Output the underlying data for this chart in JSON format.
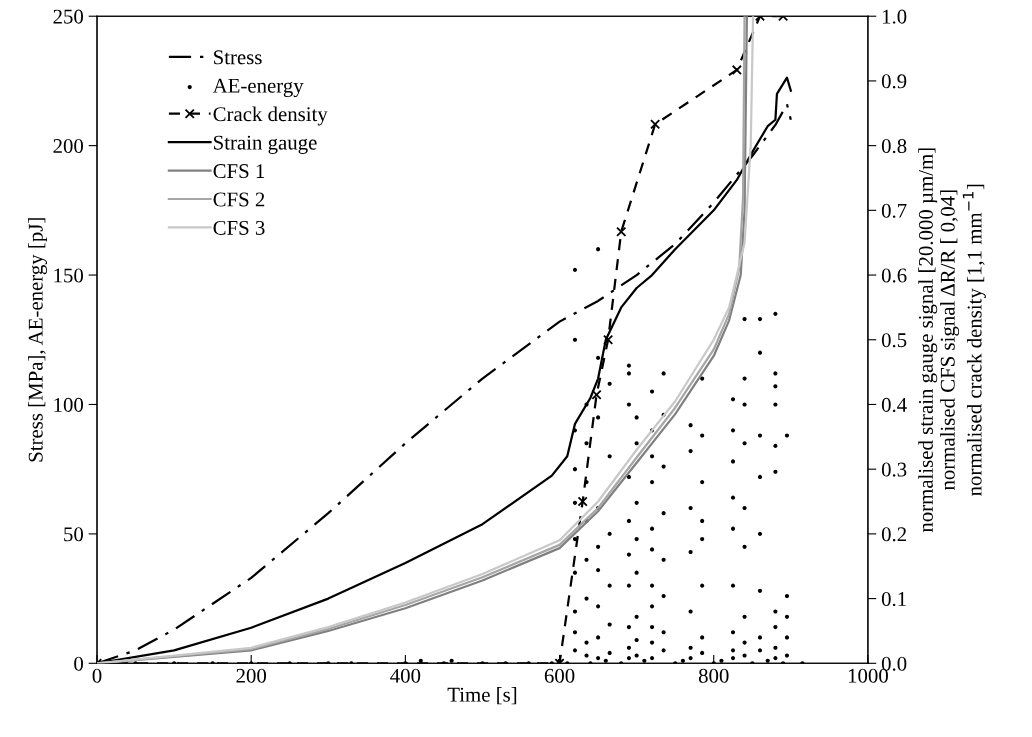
{
  "chart_data": {
    "type": "line",
    "xlabel": "Time [s]",
    "ylabel": "Stress [MPa], AE-energy [pJ]",
    "y2label": "normalised strain gauge signal [20.000 µm/m]\nnormalised CFS signal ΔR/R [ 0,04]\nnormalised crack density [1,1 mm$^{−1}$]",
    "xlim": [
      0,
      1000
    ],
    "xticks": [
      0,
      200,
      400,
      600,
      800,
      1000
    ],
    "ylim": [
      0,
      250
    ],
    "yticks": [
      0,
      50,
      100,
      150,
      200,
      250
    ],
    "y2lim": [
      0,
      1
    ],
    "y2ticks": [
      {
        "value": 0,
        "label": "0.0"
      },
      {
        "value": 0.1,
        "label": "0.1"
      },
      {
        "value": 0.2,
        "label": "0.2"
      },
      {
        "value": 0.3,
        "label": "0.3"
      },
      {
        "value": 0.4,
        "label": "0.4"
      },
      {
        "value": 0.5,
        "label": "0.5"
      },
      {
        "value": 0.6,
        "label": "0.6"
      },
      {
        "value": 0.7,
        "label": "0.7"
      },
      {
        "value": 0.8,
        "label": "0.8"
      },
      {
        "value": 0.9,
        "label": "0.9"
      },
      {
        "value": 1,
        "label": "1.0"
      }
    ],
    "grid": false,
    "legend": "top left",
    "series": [
      {
        "name": "Stress",
        "color": "#000000",
        "line_style": "dashdot",
        "marker": "none",
        "x": [
          0,
          50,
          100,
          200,
          300,
          400,
          500,
          600,
          650,
          700,
          750,
          800,
          850,
          880,
          895,
          900
        ],
        "values": [
          0,
          5,
          13,
          33,
          58,
          85,
          110,
          132,
          140,
          150,
          162,
          178,
          196,
          208,
          216,
          210
        ]
      },
      {
        "name": "AE-energy",
        "type": "scatter",
        "color": "#000000",
        "marker": "circle",
        "x": [
          50,
          100,
          150,
          200,
          250,
          300,
          330,
          400,
          420,
          450,
          460,
          500,
          530,
          560,
          590,
          600,
          610,
          640,
          660,
          680,
          710,
          750,
          760,
          800,
          810,
          850,
          870,
          890,
          915,
          620,
          620,
          620,
          620,
          620,
          620,
          620,
          620,
          620,
          620,
          635,
          635,
          635,
          635,
          635,
          635,
          635,
          635,
          650,
          650,
          650,
          650,
          650,
          650,
          650,
          650,
          650,
          665,
          665,
          665,
          665,
          665,
          665,
          690,
          690,
          690,
          690,
          690,
          690,
          690,
          690,
          690,
          690,
          700,
          700,
          700,
          700,
          700,
          700,
          700,
          700,
          720,
          720,
          720,
          720,
          720,
          720,
          720,
          720,
          720,
          720,
          720,
          735,
          735,
          735,
          735,
          735,
          735,
          735,
          735,
          770,
          770,
          770,
          770,
          770,
          770,
          770,
          785,
          785,
          785,
          785,
          785,
          785,
          785,
          785,
          825,
          825,
          825,
          825,
          825,
          825,
          825,
          825,
          825,
          840,
          840,
          840,
          840,
          840,
          840,
          840,
          840,
          840,
          860,
          860,
          860,
          860,
          860,
          860,
          860,
          860,
          880,
          880,
          880,
          880,
          880,
          880,
          880,
          880,
          880,
          880,
          895,
          895,
          895,
          895,
          895
        ],
        "values": [
          0,
          0,
          0,
          0,
          0,
          0,
          0,
          0,
          1,
          0,
          1,
          0,
          0,
          0,
          0,
          1,
          0,
          0,
          1,
          0,
          1,
          0,
          1,
          0,
          1,
          0,
          1,
          0,
          0,
          5,
          12,
          20,
          35,
          48,
          62,
          75,
          90,
          125,
          152,
          3,
          8,
          25,
          40,
          55,
          70,
          85,
          100,
          2,
          10,
          22,
          36,
          45,
          60,
          95,
          118,
          160,
          4,
          15,
          30,
          50,
          80,
          108,
          2,
          6,
          14,
          30,
          42,
          55,
          72,
          100,
          112,
          115,
          3,
          9,
          18,
          35,
          48,
          62,
          85,
          95,
          2,
          8,
          14,
          22,
          30,
          44,
          52,
          70,
          80,
          90,
          105,
          5,
          12,
          26,
          40,
          58,
          76,
          96,
          112,
          2,
          6,
          20,
          43,
          60,
          82,
          92,
          4,
          10,
          30,
          48,
          55,
          70,
          88,
          110,
          2,
          5,
          12,
          30,
          52,
          64,
          78,
          90,
          102,
          3,
          8,
          18,
          45,
          60,
          85,
          100,
          110,
          133,
          5,
          10,
          28,
          50,
          72,
          88,
          120,
          133,
          2,
          6,
          14,
          20,
          74,
          84,
          100,
          107,
          112,
          135,
          3,
          10,
          18,
          26,
          88
        ]
      },
      {
        "name": "Crack density",
        "axis": "y2",
        "color": "#000000",
        "line_style": "dashed",
        "marker": "cross",
        "x": [
          0,
          600,
          630,
          648,
          663,
          680,
          724,
          830,
          860,
          890
        ],
        "values": [
          0,
          0,
          0.25,
          0.415,
          0.5,
          0.667,
          0.833,
          0.917,
          1.0,
          1.0
        ]
      },
      {
        "name": "Strain gauge",
        "axis": "y2",
        "color": "#000000",
        "line_style": "solid",
        "marker": "none",
        "x": [
          0,
          100,
          200,
          300,
          400,
          500,
          590,
          610,
          620,
          640,
          650,
          660,
          680,
          700,
          720,
          750,
          800,
          830,
          850,
          870,
          880,
          882,
          895,
          900
        ],
        "values": [
          0,
          0.02,
          0.055,
          0.1,
          0.155,
          0.215,
          0.29,
          0.32,
          0.37,
          0.41,
          0.44,
          0.5,
          0.55,
          0.58,
          0.6,
          0.64,
          0.7,
          0.747,
          0.79,
          0.83,
          0.84,
          0.88,
          0.905,
          0.885
        ]
      },
      {
        "name": "CFS 1",
        "axis": "y2",
        "color": "#808080",
        "line_style": "solid",
        "marker": "none",
        "x": [
          0,
          200,
          300,
          400,
          500,
          600,
          650,
          700,
          750,
          800,
          820,
          835,
          840,
          843
        ],
        "values": [
          0,
          0.02,
          0.05,
          0.085,
          0.128,
          0.178,
          0.235,
          0.31,
          0.385,
          0.475,
          0.53,
          0.6,
          0.7,
          1.0
        ]
      },
      {
        "name": "CFS 2",
        "axis": "y2",
        "color": "#a6a6a6",
        "line_style": "solid",
        "marker": "none",
        "x": [
          0,
          200,
          300,
          400,
          500,
          600,
          650,
          700,
          750,
          800,
          820,
          833,
          838,
          840
        ],
        "values": [
          0,
          0.022,
          0.053,
          0.09,
          0.133,
          0.183,
          0.24,
          0.318,
          0.395,
          0.485,
          0.54,
          0.61,
          0.72,
          1.0
        ]
      },
      {
        "name": "CFS 3",
        "axis": "y2",
        "color": "#c8c8c8",
        "line_style": "solid",
        "marker": "none",
        "x": [
          0,
          200,
          300,
          400,
          500,
          600,
          650,
          700,
          750,
          800,
          820,
          840,
          848,
          851
        ],
        "values": [
          0,
          0.024,
          0.056,
          0.094,
          0.138,
          0.19,
          0.25,
          0.33,
          0.405,
          0.5,
          0.55,
          0.65,
          0.8,
          1.0
        ]
      }
    ]
  }
}
